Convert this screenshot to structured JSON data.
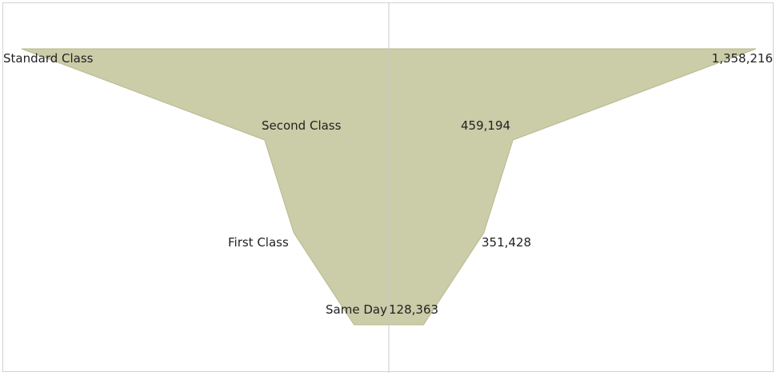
{
  "chart_data": {
    "type": "area",
    "subtype": "funnel",
    "categories": [
      "Standard Class",
      "Second Class",
      "First Class",
      "Same Day"
    ],
    "values": [
      1358216,
      459194,
      351428,
      128363
    ],
    "value_labels": [
      "1,358,216",
      "459,194",
      "351,428",
      "128,363"
    ],
    "title": "",
    "xlabel": "",
    "ylabel": "",
    "fill_color": "#cbcca8",
    "edge_color": "#b8ba8e",
    "axis_color": "#c8c8c8",
    "label_color": "#222222",
    "grid": false,
    "legend": "none"
  }
}
